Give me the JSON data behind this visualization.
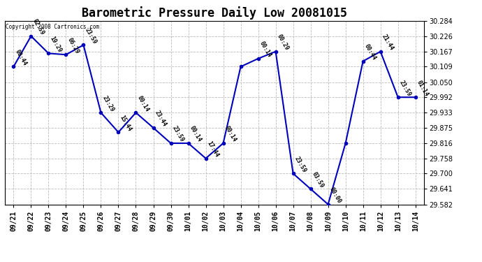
{
  "title": "Barometric Pressure Daily Low 20081015",
  "copyright": "Copyright 2008 Cartronics.com",
  "dates": [
    "09/21",
    "09/22",
    "09/23",
    "09/24",
    "09/25",
    "09/26",
    "09/27",
    "09/28",
    "09/29",
    "09/30",
    "10/01",
    "10/02",
    "10/03",
    "10/04",
    "10/05",
    "10/06",
    "10/07",
    "10/08",
    "10/09",
    "10/10",
    "10/11",
    "10/12",
    "10/13",
    "10/14"
  ],
  "values": [
    30.109,
    30.226,
    30.16,
    30.155,
    30.192,
    29.933,
    29.858,
    29.933,
    29.875,
    29.816,
    29.816,
    29.758,
    29.816,
    30.109,
    30.14,
    30.167,
    29.7,
    29.641,
    29.582,
    29.816,
    30.13,
    30.167,
    29.992,
    29.992
  ],
  "times": [
    "00:44",
    "02:59",
    "19:29",
    "06:29",
    "23:59",
    "23:29",
    "15:44",
    "00:14",
    "23:44",
    "23:59",
    "00:14",
    "17:44",
    "00:14",
    "",
    "00:14",
    "00:29",
    "23:59",
    "03:59",
    "00:00",
    "",
    "00:44",
    "21:44",
    "23:59",
    "01:14"
  ],
  "ylim_min": 29.582,
  "ylim_max": 30.284,
  "yticks": [
    29.582,
    29.641,
    29.7,
    29.758,
    29.816,
    29.875,
    29.933,
    29.992,
    30.05,
    30.109,
    30.167,
    30.226,
    30.284
  ],
  "line_color": "#0000bb",
  "marker_color": "#0000bb",
  "bg_color": "#ffffff",
  "grid_color": "#bbbbbb",
  "title_fontsize": 12,
  "tick_fontsize": 7,
  "annot_fontsize": 6
}
